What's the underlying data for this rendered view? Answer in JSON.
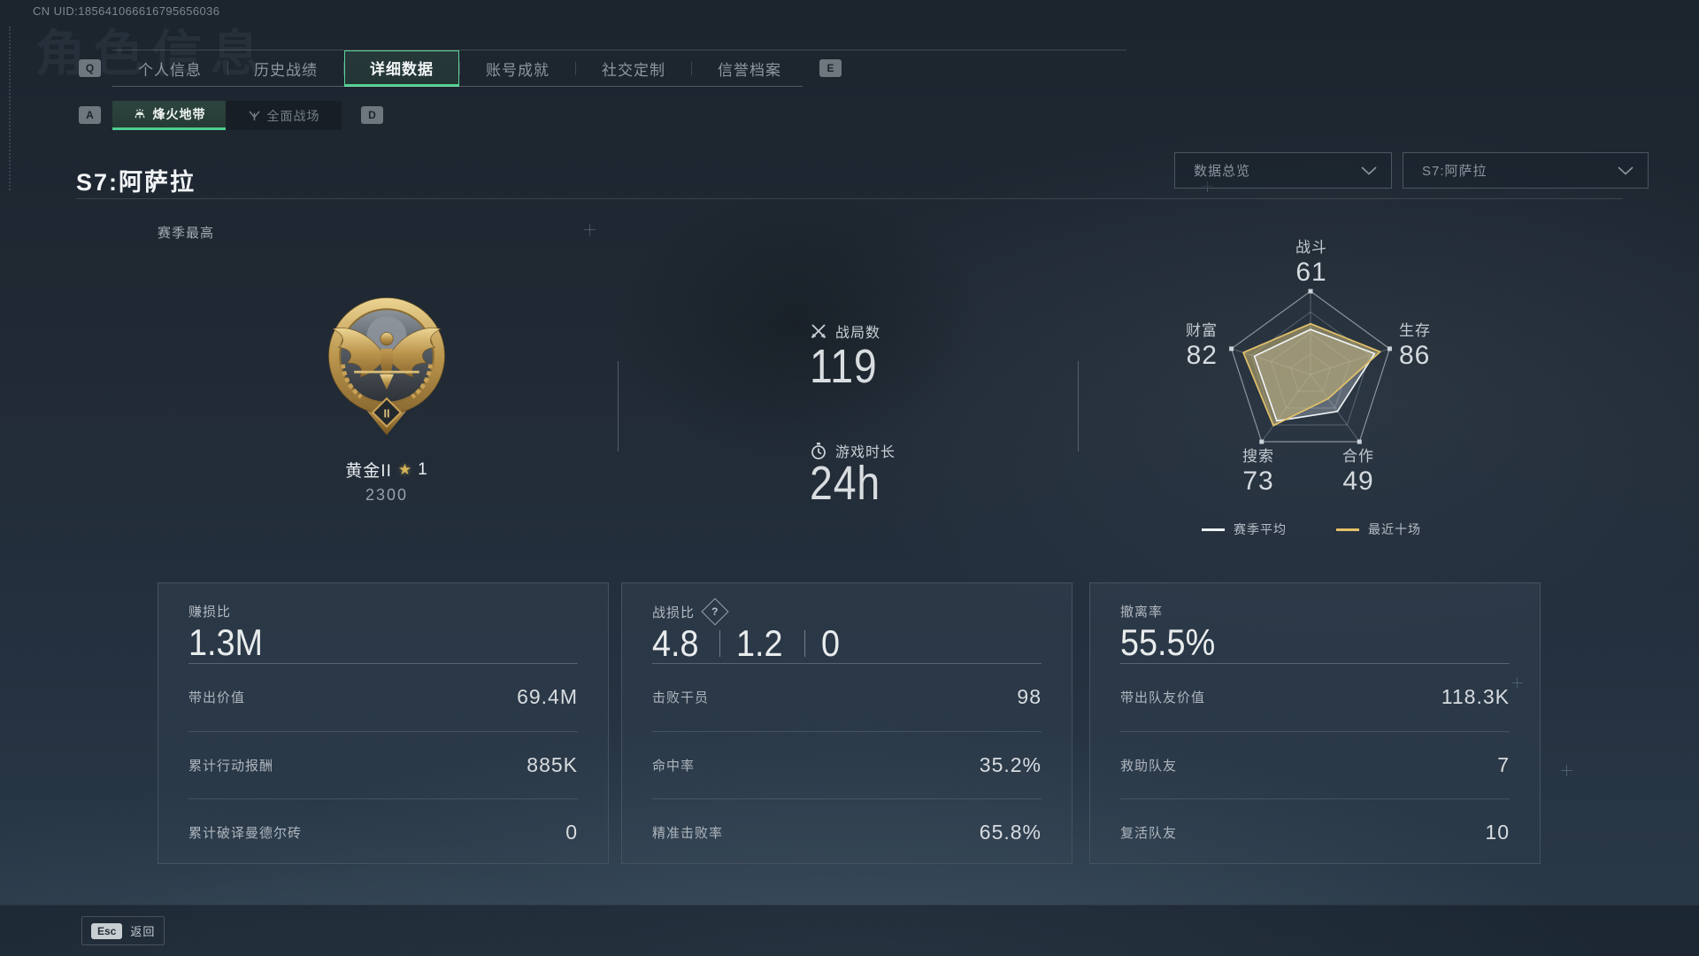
{
  "header": {
    "uid": "CN UID:185641066616795656036",
    "ghost_title": "角色信息"
  },
  "tabs": {
    "left_key": "Q",
    "right_key": "E",
    "active_index": 2,
    "items": [
      {
        "label": "个人信息"
      },
      {
        "label": "历史战绩"
      },
      {
        "label": "详细数据"
      },
      {
        "label": "账号成就"
      },
      {
        "label": "社交定制"
      },
      {
        "label": "信誉档案"
      }
    ]
  },
  "subtabs": {
    "left_key": "A",
    "right_key": "D",
    "active_index": 0,
    "items": [
      {
        "label": "烽火地带"
      },
      {
        "label": "全面战场"
      }
    ]
  },
  "season": {
    "title": "S7:阿萨拉",
    "section_label": "赛季最高"
  },
  "filters": {
    "overview": {
      "value": "数据总览"
    },
    "season": {
      "value": "S7:阿萨拉"
    }
  },
  "rank": {
    "tier": "黄金II",
    "star_icon": "★",
    "star_count": "1",
    "score": "2300",
    "medal_numeral": "II"
  },
  "overview_stats": [
    {
      "icon": "crossed-swords",
      "label": "战局数",
      "value": "119"
    },
    {
      "icon": "stopwatch",
      "label": "游戏时长",
      "value": "24h"
    }
  ],
  "chart_data": {
    "type": "radar",
    "axes": [
      "战斗",
      "生存",
      "合作",
      "搜索",
      "财富"
    ],
    "axis_values": [
      "61",
      "86",
      "49",
      "73",
      "82"
    ],
    "max": 100,
    "grid_levels": 4,
    "legend_position": "bottom",
    "series": [
      {
        "name": "赛季平均",
        "color": "#eef2f5",
        "fill": "rgba(222,230,238,0.30)",
        "values": [
          54,
          81,
          55,
          69,
          71
        ]
      },
      {
        "name": "最近十场",
        "color": "#e2c169",
        "fill": "rgba(204,184,120,0.55)",
        "values": [
          61,
          88,
          36,
          76,
          85
        ]
      }
    ]
  },
  "cards": [
    {
      "title": "赚损比",
      "big": [
        "1.3M"
      ],
      "rows": [
        {
          "label": "带出价值",
          "value": "69.4M"
        },
        {
          "label": "累计行动报酬",
          "value": "885K"
        },
        {
          "label": "累计破译曼德尔砖",
          "value": "0"
        }
      ]
    },
    {
      "title": "战损比",
      "help_icon": "?",
      "big": [
        "4.8",
        "1.2",
        "0"
      ],
      "rows": [
        {
          "label": "击败干员",
          "value": "98"
        },
        {
          "label": "命中率",
          "value": "35.2%"
        },
        {
          "label": "精准击败率",
          "value": "65.8%"
        }
      ]
    },
    {
      "title": "撤离率",
      "big": [
        "55.5%"
      ],
      "rows": [
        {
          "label": "带出队友价值",
          "value": "118.3K"
        },
        {
          "label": "救助队友",
          "value": "7"
        },
        {
          "label": "复活队友",
          "value": "10"
        }
      ]
    }
  ],
  "footer": {
    "key_label": "Esc",
    "action_label": "返回"
  }
}
